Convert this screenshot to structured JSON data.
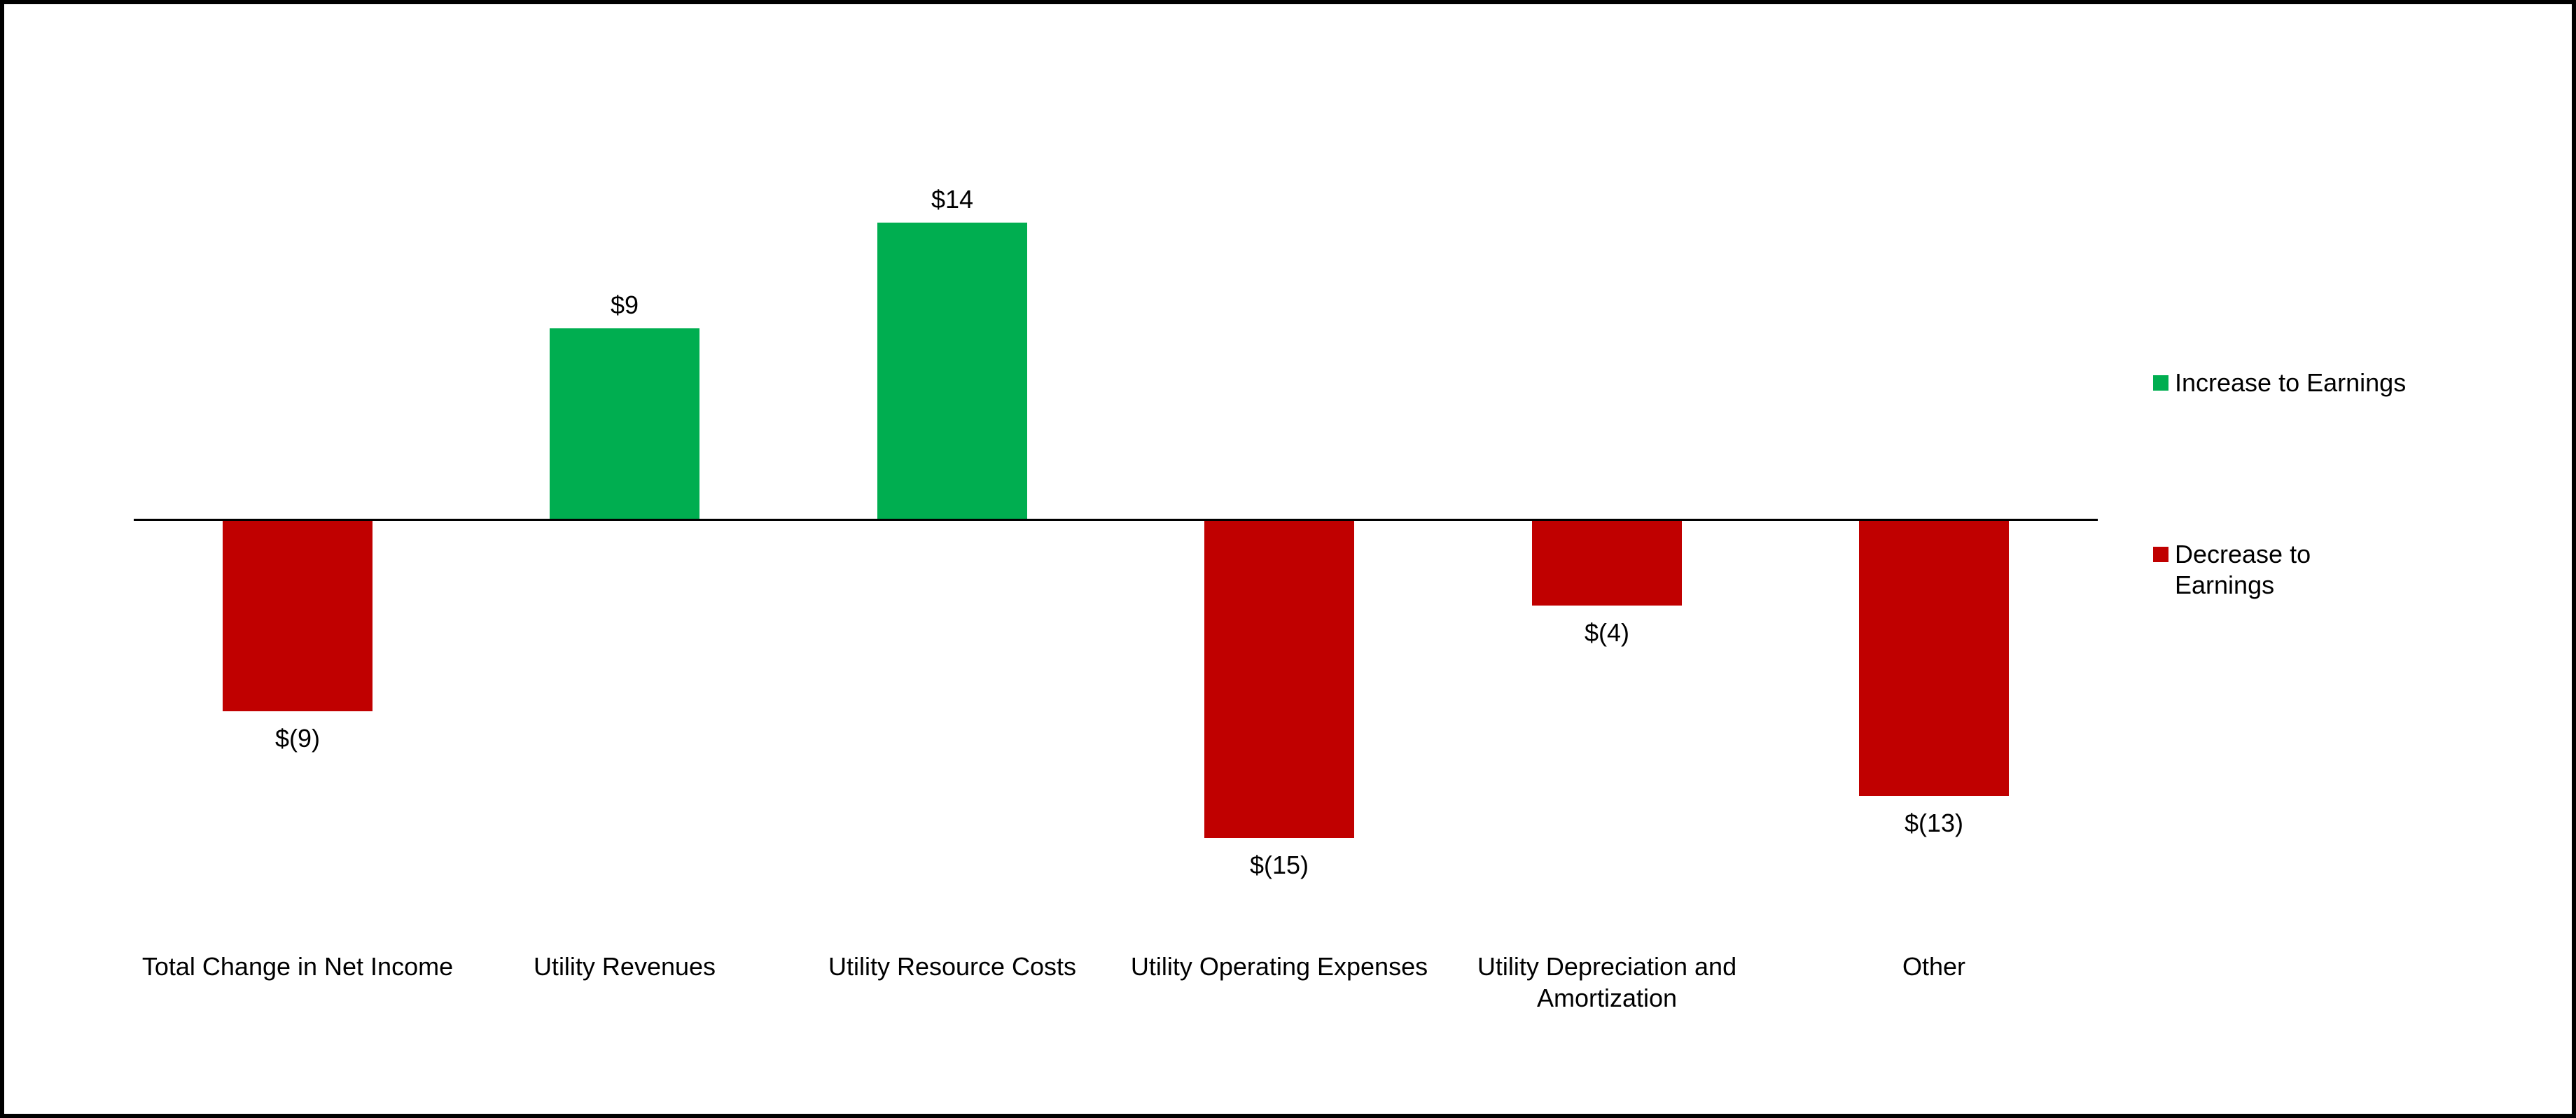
{
  "chart_data": {
    "type": "bar",
    "title": "",
    "xlabel": "",
    "ylabel": "",
    "categories": [
      "Total Change in Net Income",
      "Utility Revenues",
      "Utility Resource Costs",
      "Utility Operating Expenses",
      "Utility Depreciation and Amortization",
      "Other"
    ],
    "values": [
      -9,
      9,
      14,
      -15,
      -4,
      -13
    ],
    "value_labels": [
      "$(9)",
      "$9",
      "$14",
      "$(15)",
      "$(4)",
      "$(13)"
    ],
    "units": "millions of dollars",
    "baseline_value": 0,
    "ylim": [
      -16,
      16
    ],
    "grid": false,
    "y_axis_visible": false,
    "zero_line_visible": true,
    "legend_position": "right",
    "colors": {
      "increase": "#00AE50",
      "decrease": "#C00000",
      "axis_line": "#000000",
      "text": "#000000",
      "background": "#FFFFFF",
      "border": "#000000"
    },
    "legend": [
      {
        "label": "Increase to Earnings",
        "color": "#00AE50"
      },
      {
        "label": "Decrease to Earnings",
        "color": "#C00000"
      }
    ]
  }
}
